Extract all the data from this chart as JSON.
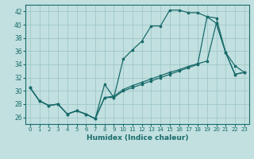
{
  "xlabel": "Humidex (Indice chaleur)",
  "bg_color": "#c2e0e0",
  "grid_color": "#a0c8c8",
  "line_color": "#1a6b6b",
  "ylim": [
    25.0,
    43.0
  ],
  "xlim": [
    -0.5,
    23.5
  ],
  "yticks": [
    26,
    28,
    30,
    32,
    34,
    36,
    38,
    40,
    42
  ],
  "xticks": [
    0,
    1,
    2,
    3,
    4,
    5,
    6,
    7,
    8,
    9,
    10,
    11,
    12,
    13,
    14,
    15,
    16,
    17,
    18,
    19,
    20,
    21,
    22,
    23
  ],
  "series1_x": [
    0,
    1,
    2,
    3,
    4,
    5,
    6,
    7,
    8,
    9,
    10,
    11,
    12,
    13,
    14,
    15,
    16,
    17,
    18,
    19,
    20,
    21,
    22,
    23
  ],
  "series1_y": [
    30.5,
    28.5,
    27.8,
    28.0,
    26.5,
    27.0,
    26.5,
    25.8,
    31.0,
    29.0,
    34.8,
    36.2,
    37.5,
    39.8,
    39.8,
    42.2,
    42.2,
    41.8,
    41.8,
    41.2,
    40.2,
    35.8,
    33.8,
    32.8
  ],
  "series2_x": [
    0,
    1,
    2,
    3,
    4,
    5,
    6,
    7,
    8,
    9,
    10,
    11,
    12,
    13,
    14,
    15,
    16,
    17,
    18,
    19,
    20,
    21,
    22,
    23
  ],
  "series2_y": [
    30.5,
    28.5,
    27.8,
    28.0,
    26.5,
    27.0,
    26.5,
    25.8,
    29.0,
    29.2,
    30.2,
    30.8,
    31.3,
    31.8,
    32.3,
    32.8,
    33.2,
    33.7,
    34.1,
    34.5,
    40.2,
    35.8,
    32.5,
    32.8
  ],
  "series3_x": [
    0,
    1,
    2,
    3,
    4,
    5,
    6,
    7,
    8,
    9,
    10,
    11,
    12,
    13,
    14,
    15,
    16,
    17,
    18,
    19,
    20,
    21,
    22,
    23
  ],
  "series3_y": [
    30.5,
    28.5,
    27.8,
    28.0,
    26.5,
    27.0,
    26.5,
    25.8,
    29.0,
    29.0,
    30.0,
    30.5,
    31.0,
    31.5,
    32.0,
    32.5,
    33.0,
    33.5,
    34.0,
    41.2,
    41.0,
    35.8,
    32.5,
    32.8
  ]
}
